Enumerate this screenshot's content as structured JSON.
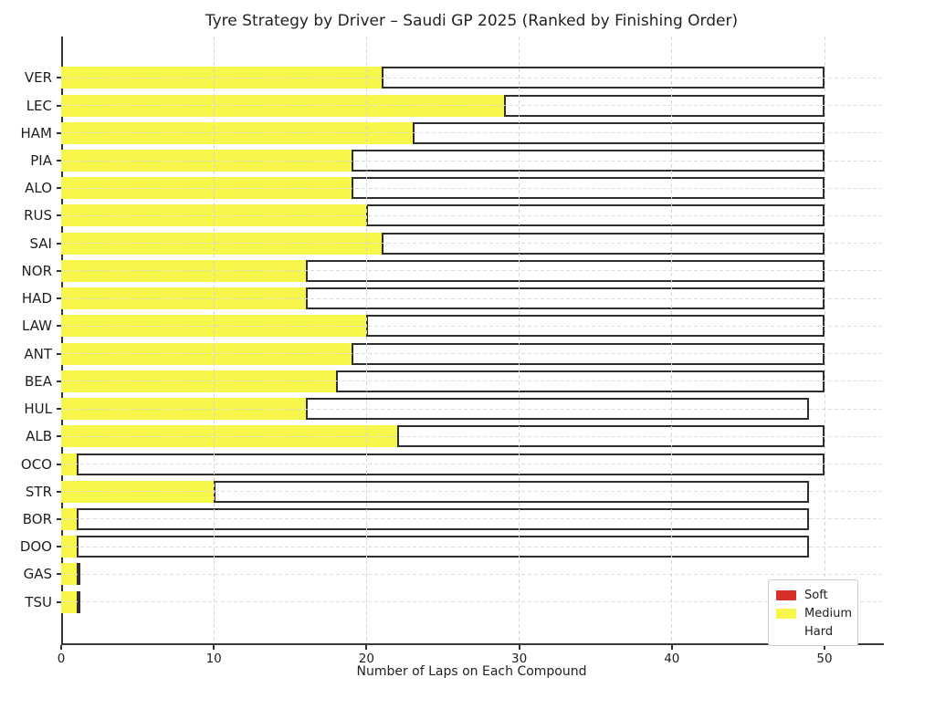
{
  "title": "Tyre Strategy by Driver – Saudi GP 2025 (Ranked by Finishing Order)",
  "axes": {
    "xlabel": "Number of Laps on Each Compound",
    "x_ticks": [
      0,
      10,
      20,
      30,
      40,
      50
    ]
  },
  "legend": {
    "items": [
      {
        "label": "Soft",
        "color": "#d62f27"
      },
      {
        "label": "Medium",
        "color": "#f7f64b"
      },
      {
        "label": "Hard",
        "color": "#ffffff"
      }
    ]
  },
  "colors": {
    "soft": "#d62f27",
    "medium": "#f7f64b",
    "hard": "#ffffff",
    "bar_edge": "#2e2e2e",
    "spine": "#333333",
    "grid": "#d6d6d6"
  },
  "chart_data": {
    "type": "bar",
    "orientation": "horizontal-stacked",
    "title": "Tyre Strategy by Driver – Saudi GP 2025 (Ranked by Finishing Order)",
    "xlabel": "Number of Laps on Each Compound",
    "ylabel": "",
    "xlim": [
      0,
      53.8
    ],
    "x_ticks": [
      0,
      10,
      20,
      30,
      40,
      50
    ],
    "grid": true,
    "grid_style": "dashed",
    "legend_position": "lower right",
    "categories": [
      "VER",
      "LEC",
      "HAM",
      "PIA",
      "ALO",
      "RUS",
      "SAI",
      "NOR",
      "HAD",
      "LAW",
      "ANT",
      "BEA",
      "HUL",
      "ALB",
      "OCO",
      "STR",
      "BOR",
      "DOO",
      "GAS",
      "TSU"
    ],
    "series": [
      {
        "name": "Soft",
        "color": "#d62f27",
        "values": [
          0,
          0,
          0,
          0,
          0,
          0,
          0,
          0,
          0,
          0,
          0,
          0,
          0,
          0,
          0,
          0,
          0,
          0,
          0,
          0
        ]
      },
      {
        "name": "Medium",
        "color": "#f7f64b",
        "values": [
          21,
          29,
          23,
          19,
          19,
          20,
          21,
          16,
          16,
          20,
          19,
          18,
          16,
          22,
          1,
          10,
          1,
          1,
          1,
          1
        ]
      },
      {
        "name": "Hard",
        "color": "#ffffff",
        "values": [
          29,
          21,
          27,
          31,
          31,
          30,
          29,
          34,
          34,
          30,
          31,
          32,
          33,
          28,
          49,
          39,
          48,
          48,
          0,
          0
        ]
      }
    ],
    "totals": [
      50,
      50,
      50,
      50,
      50,
      50,
      50,
      50,
      50,
      50,
      50,
      50,
      49,
      50,
      50,
      49,
      49,
      49,
      1,
      1
    ]
  }
}
